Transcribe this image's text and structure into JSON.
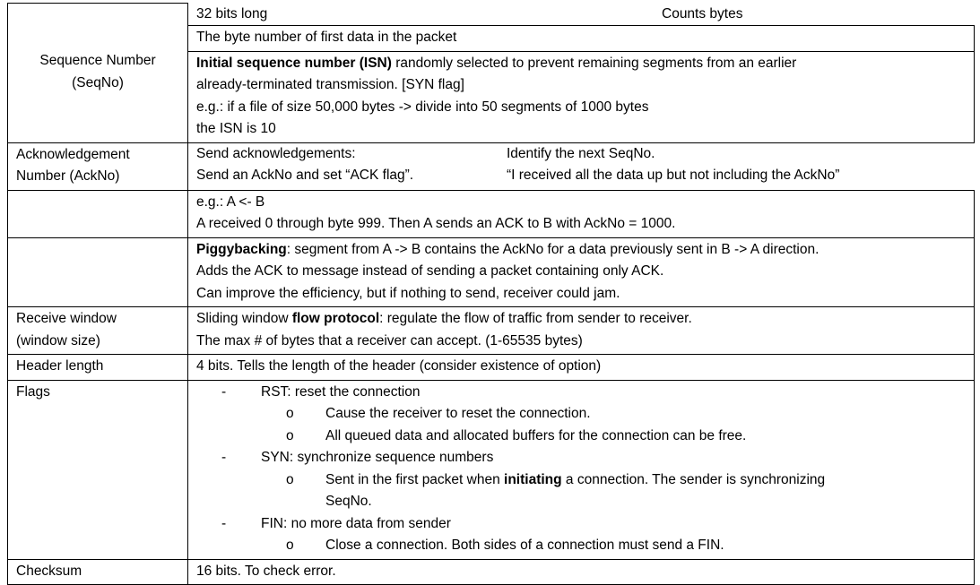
{
  "rows": {
    "seqno": {
      "label": [
        "Sequence Number",
        "(SeqNo)"
      ],
      "cell1_left": "32 bits long",
      "cell1_right": "Counts bytes",
      "cell2": "The byte number of first data in the packet",
      "isn_bold": "Initial sequence number (ISN)",
      "isn_rest": " randomly selected to prevent remaining segments from an earlier",
      "isn_line2": "already-terminated transmission. [SYN flag]",
      "example_line1": "e.g.: if a file of size 50,000 bytes -> divide into 50 segments of 1000 bytes",
      "example_line2": "the ISN is 10"
    },
    "ackno": {
      "label": [
        "Acknowledgement",
        "Number (AckNo)"
      ],
      "left": [
        "Send acknowledgements:",
        "Send an AckNo and set “ACK flag”."
      ],
      "right": [
        "Identify the next SeqNo.",
        "“I received all the data up but not including the AckNo”"
      ],
      "example": [
        "e.g.: A <- B",
        "A received 0 through byte 999. Then A sends an ACK to B with AckNo = 1000."
      ],
      "piggy_bold": "Piggybacking",
      "piggy_rest": ": segment from A -> B contains the AckNo for a data previously sent in B -> A direction.",
      "piggy_lines": [
        "Adds the ACK to message instead of sending a packet containing only ACK.",
        "Can improve the efficiency, but if nothing to send, receiver could jam."
      ]
    },
    "rwnd": {
      "label": [
        "Receive window",
        "(window size)"
      ],
      "line1_pre": "Sliding window ",
      "line1_bold": "flow protocol",
      "line1_post": ": regulate the flow of traffic from sender to receiver.",
      "line2": "The max # of bytes that a receiver can accept. (1-65535 bytes)"
    },
    "header": {
      "label": "Header length",
      "text": "4 bits. Tells the length of the header (consider existence of option)"
    },
    "flags": {
      "label": "Flags",
      "dash": "-",
      "circle": "o",
      "rst": "RST: reset the connection",
      "rst_subs": [
        "Cause the receiver to reset the connection.",
        "All queued data and allocated buffers for the connection can be free."
      ],
      "syn": "SYN: synchronize sequence numbers",
      "syn_sub_pre": "Sent in the first packet when ",
      "syn_sub_bold": "initiating",
      "syn_sub_post": " a connection. The sender is synchronizing",
      "syn_sub_cont": "SeqNo.",
      "fin": "FIN: no more data from sender",
      "fin_sub": "Close a connection. Both sides of a connection must send a FIN."
    },
    "checksum": {
      "label": "Checksum",
      "text": "16 bits. To check error."
    }
  }
}
